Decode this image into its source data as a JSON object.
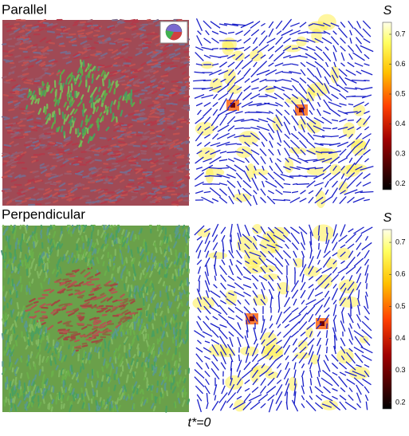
{
  "panels": [
    {
      "label": "Parallel",
      "colorbar": {
        "title": "S",
        "lim": [
          0.18,
          0.74
        ],
        "ticks": [
          0.2,
          0.3,
          0.4,
          0.5,
          0.6,
          0.7
        ]
      }
    },
    {
      "label": "Perpendicular",
      "colorbar": {
        "title": "S",
        "lim": [
          0.18,
          0.74
        ],
        "ticks": [
          0.2,
          0.3,
          0.4,
          0.5,
          0.6,
          0.7
        ]
      }
    }
  ],
  "caption": "t*=0"
}
